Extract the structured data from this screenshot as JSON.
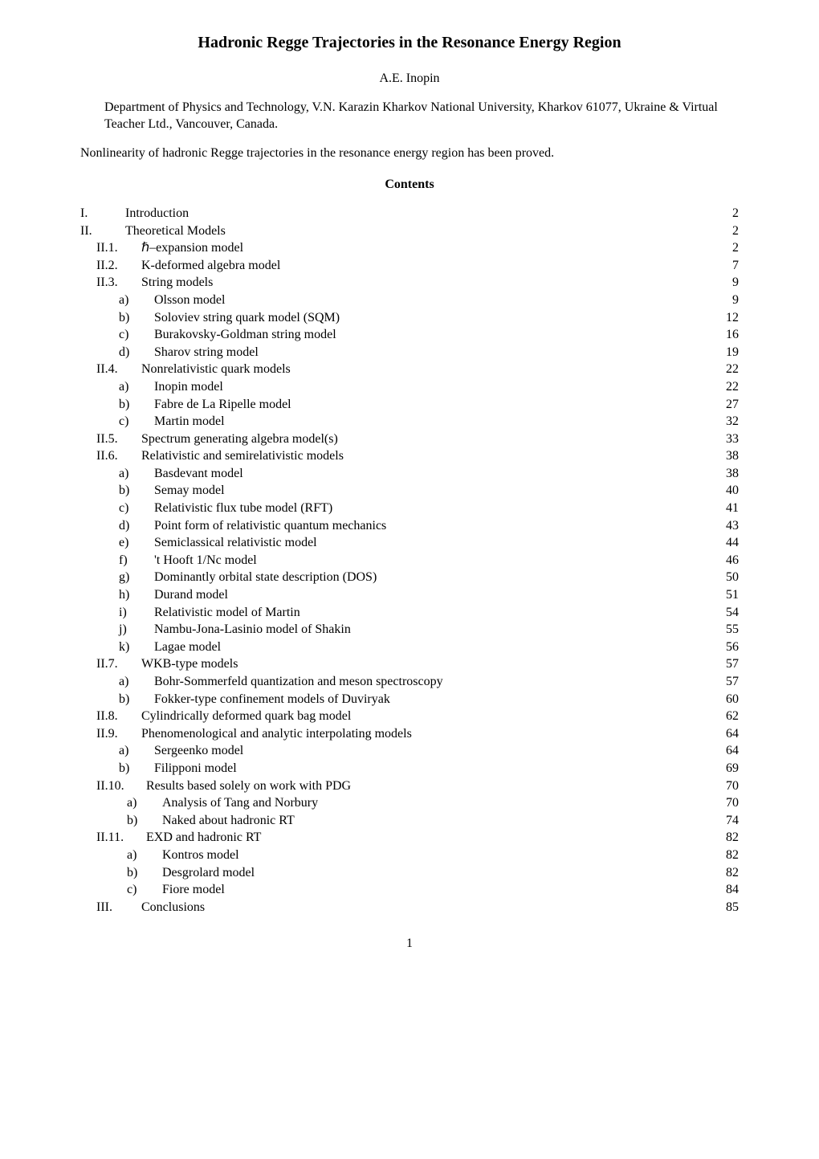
{
  "title": "Hadronic Regge Trajectories in the Resonance Energy Region",
  "author": "A.E. Inopin",
  "affiliation": "Department of Physics and Technology, V.N. Karazin Kharkov National University, Kharkov 61077, Ukraine & Virtual Teacher Ltd., Vancouver, Canada.",
  "abstract": "Nonlinearity of hadronic Regge trajectories in the resonance energy region has been proved.",
  "contents_heading": "Contents",
  "toc": [
    {
      "lvl": "lvl-1",
      "label": "I.",
      "text": "Introduction",
      "page": "2"
    },
    {
      "lvl": "lvl-1",
      "label": "II.",
      "text": "Theoretical Models",
      "page": "2"
    },
    {
      "lvl": "lvl-2",
      "label": "II.1.",
      "text": "ℏ–expansion model",
      "page": "2"
    },
    {
      "lvl": "lvl-2",
      "label": "II.2.",
      "text": "K-deformed algebra model",
      "page": "7"
    },
    {
      "lvl": "lvl-2",
      "label": "II.3.",
      "text": "String models",
      "page": "9"
    },
    {
      "lvl": "lvl-3",
      "label": "a)",
      "text": "Olsson model",
      "page": "9"
    },
    {
      "lvl": "lvl-3",
      "label": "b)",
      "text": "Soloviev string quark model (SQM)",
      "page": "12"
    },
    {
      "lvl": "lvl-3",
      "label": "c)",
      "text": "Burakovsky-Goldman string model",
      "page": "16"
    },
    {
      "lvl": "lvl-3",
      "label": "d)",
      "text": "Sharov string model",
      "page": "19"
    },
    {
      "lvl": "lvl-2",
      "label": "II.4.",
      "text": "Nonrelativistic quark models",
      "page": "22"
    },
    {
      "lvl": "lvl-3",
      "label": "a)",
      "text": "Inopin model",
      "page": "22"
    },
    {
      "lvl": "lvl-3",
      "label": "b)",
      "text": "Fabre de La Ripelle model",
      "page": "27"
    },
    {
      "lvl": "lvl-3",
      "label": "c)",
      "text": "Martin model",
      "page": "32"
    },
    {
      "lvl": "lvl-2",
      "label": "II.5.",
      "text": "Spectrum generating algebra model(s)",
      "page": "33"
    },
    {
      "lvl": "lvl-2",
      "label": "II.6.",
      "text": "Relativistic and semirelativistic models",
      "page": "38"
    },
    {
      "lvl": "lvl-3",
      "label": "a)",
      "text": "Basdevant model",
      "page": "38"
    },
    {
      "lvl": "lvl-3",
      "label": "b)",
      "text": "Semay model",
      "page": "40"
    },
    {
      "lvl": "lvl-3",
      "label": "c)",
      "text": "Relativistic flux tube model (RFT)",
      "page": "41"
    },
    {
      "lvl": "lvl-3",
      "label": "d)",
      "text": "Point form of relativistic quantum mechanics",
      "page": "43"
    },
    {
      "lvl": "lvl-3",
      "label": "e)",
      "text": "Semiclassical relativistic model",
      "page": "44"
    },
    {
      "lvl": "lvl-3",
      "label": "f)",
      "text": "'t Hooft 1/Nc model",
      "page": "46"
    },
    {
      "lvl": "lvl-3",
      "label": "g)",
      "text": "Dominantly orbital state description (DOS)",
      "page": "50"
    },
    {
      "lvl": "lvl-3",
      "label": "h)",
      "text": "Durand model",
      "page": "51"
    },
    {
      "lvl": "lvl-3",
      "label": "i)",
      "text": "Relativistic model of Martin",
      "page": "54"
    },
    {
      "lvl": "lvl-3",
      "label": "j)",
      "text": "Nambu-Jona-Lasinio model of Shakin",
      "page": "55"
    },
    {
      "lvl": "lvl-3",
      "label": "k)",
      "text": "Lagae model",
      "page": "56"
    },
    {
      "lvl": "lvl-2",
      "label": "II.7.",
      "text": "WKB-type models",
      "page": "57"
    },
    {
      "lvl": "lvl-3",
      "label": "a)",
      "text": "Bohr-Sommerfeld quantization and meson spectroscopy",
      "page": "57"
    },
    {
      "lvl": "lvl-3",
      "label": "b)",
      "text": "Fokker-type confinement models of Duviryak",
      "page": "60"
    },
    {
      "lvl": "lvl-2",
      "label": "II.8.",
      "text": "Cylindrically deformed quark bag model",
      "page": "62"
    },
    {
      "lvl": "lvl-2",
      "label": "II.9.",
      "text": "Phenomenological and analytic interpolating models",
      "page": "64"
    },
    {
      "lvl": "lvl-3",
      "label": "a)",
      "text": "Sergeenko model",
      "page": "64"
    },
    {
      "lvl": "lvl-3",
      "label": "b)",
      "text": "Filipponi model",
      "page": "69"
    },
    {
      "lvl": "lvl-2b",
      "label": "II.10.",
      "text": "Results based solely on work with PDG",
      "page": "70"
    },
    {
      "lvl": "lvl-3b",
      "label": "a)",
      "text": "Analysis of Tang and Norbury",
      "page": "70"
    },
    {
      "lvl": "lvl-3b",
      "label": "b)",
      "text": "Naked about hadronic RT",
      "page": "74"
    },
    {
      "lvl": "lvl-2b",
      "label": "II.11.",
      "text": "EXD and hadronic RT",
      "page": "82"
    },
    {
      "lvl": "lvl-3b",
      "label": "a)",
      "text": "Kontros model",
      "page": "82"
    },
    {
      "lvl": "lvl-3b",
      "label": "b)",
      "text": "Desgrolard model",
      "page": "82"
    },
    {
      "lvl": "lvl-3b",
      "label": "c)",
      "text": "Fiore model",
      "page": "84"
    },
    {
      "lvl": "lvl-2",
      "label": "III.",
      "text": "Conclusions",
      "page": "85"
    }
  ],
  "page_number": "1"
}
